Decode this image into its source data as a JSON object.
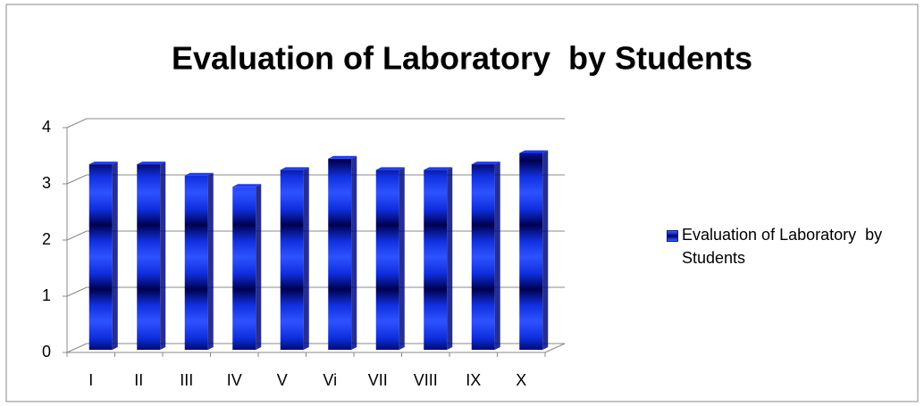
{
  "chart_data": {
    "type": "bar",
    "title": "Evaluation of Laboratory  by Students",
    "categories": [
      "I",
      "II",
      "III",
      "IV",
      "V",
      "Vi",
      "VII",
      "VIII",
      "IX",
      "X"
    ],
    "series": [
      {
        "name": "Evaluation of Laboratory  by Students",
        "color": "#1a3cff",
        "values": [
          3.3,
          3.3,
          3.1,
          2.9,
          3.2,
          3.4,
          3.2,
          3.2,
          3.3,
          3.5
        ]
      }
    ],
    "ylim": [
      0,
      4
    ],
    "yticks": [
      0,
      1,
      2,
      3,
      4
    ],
    "grid": true,
    "legend": "right"
  }
}
